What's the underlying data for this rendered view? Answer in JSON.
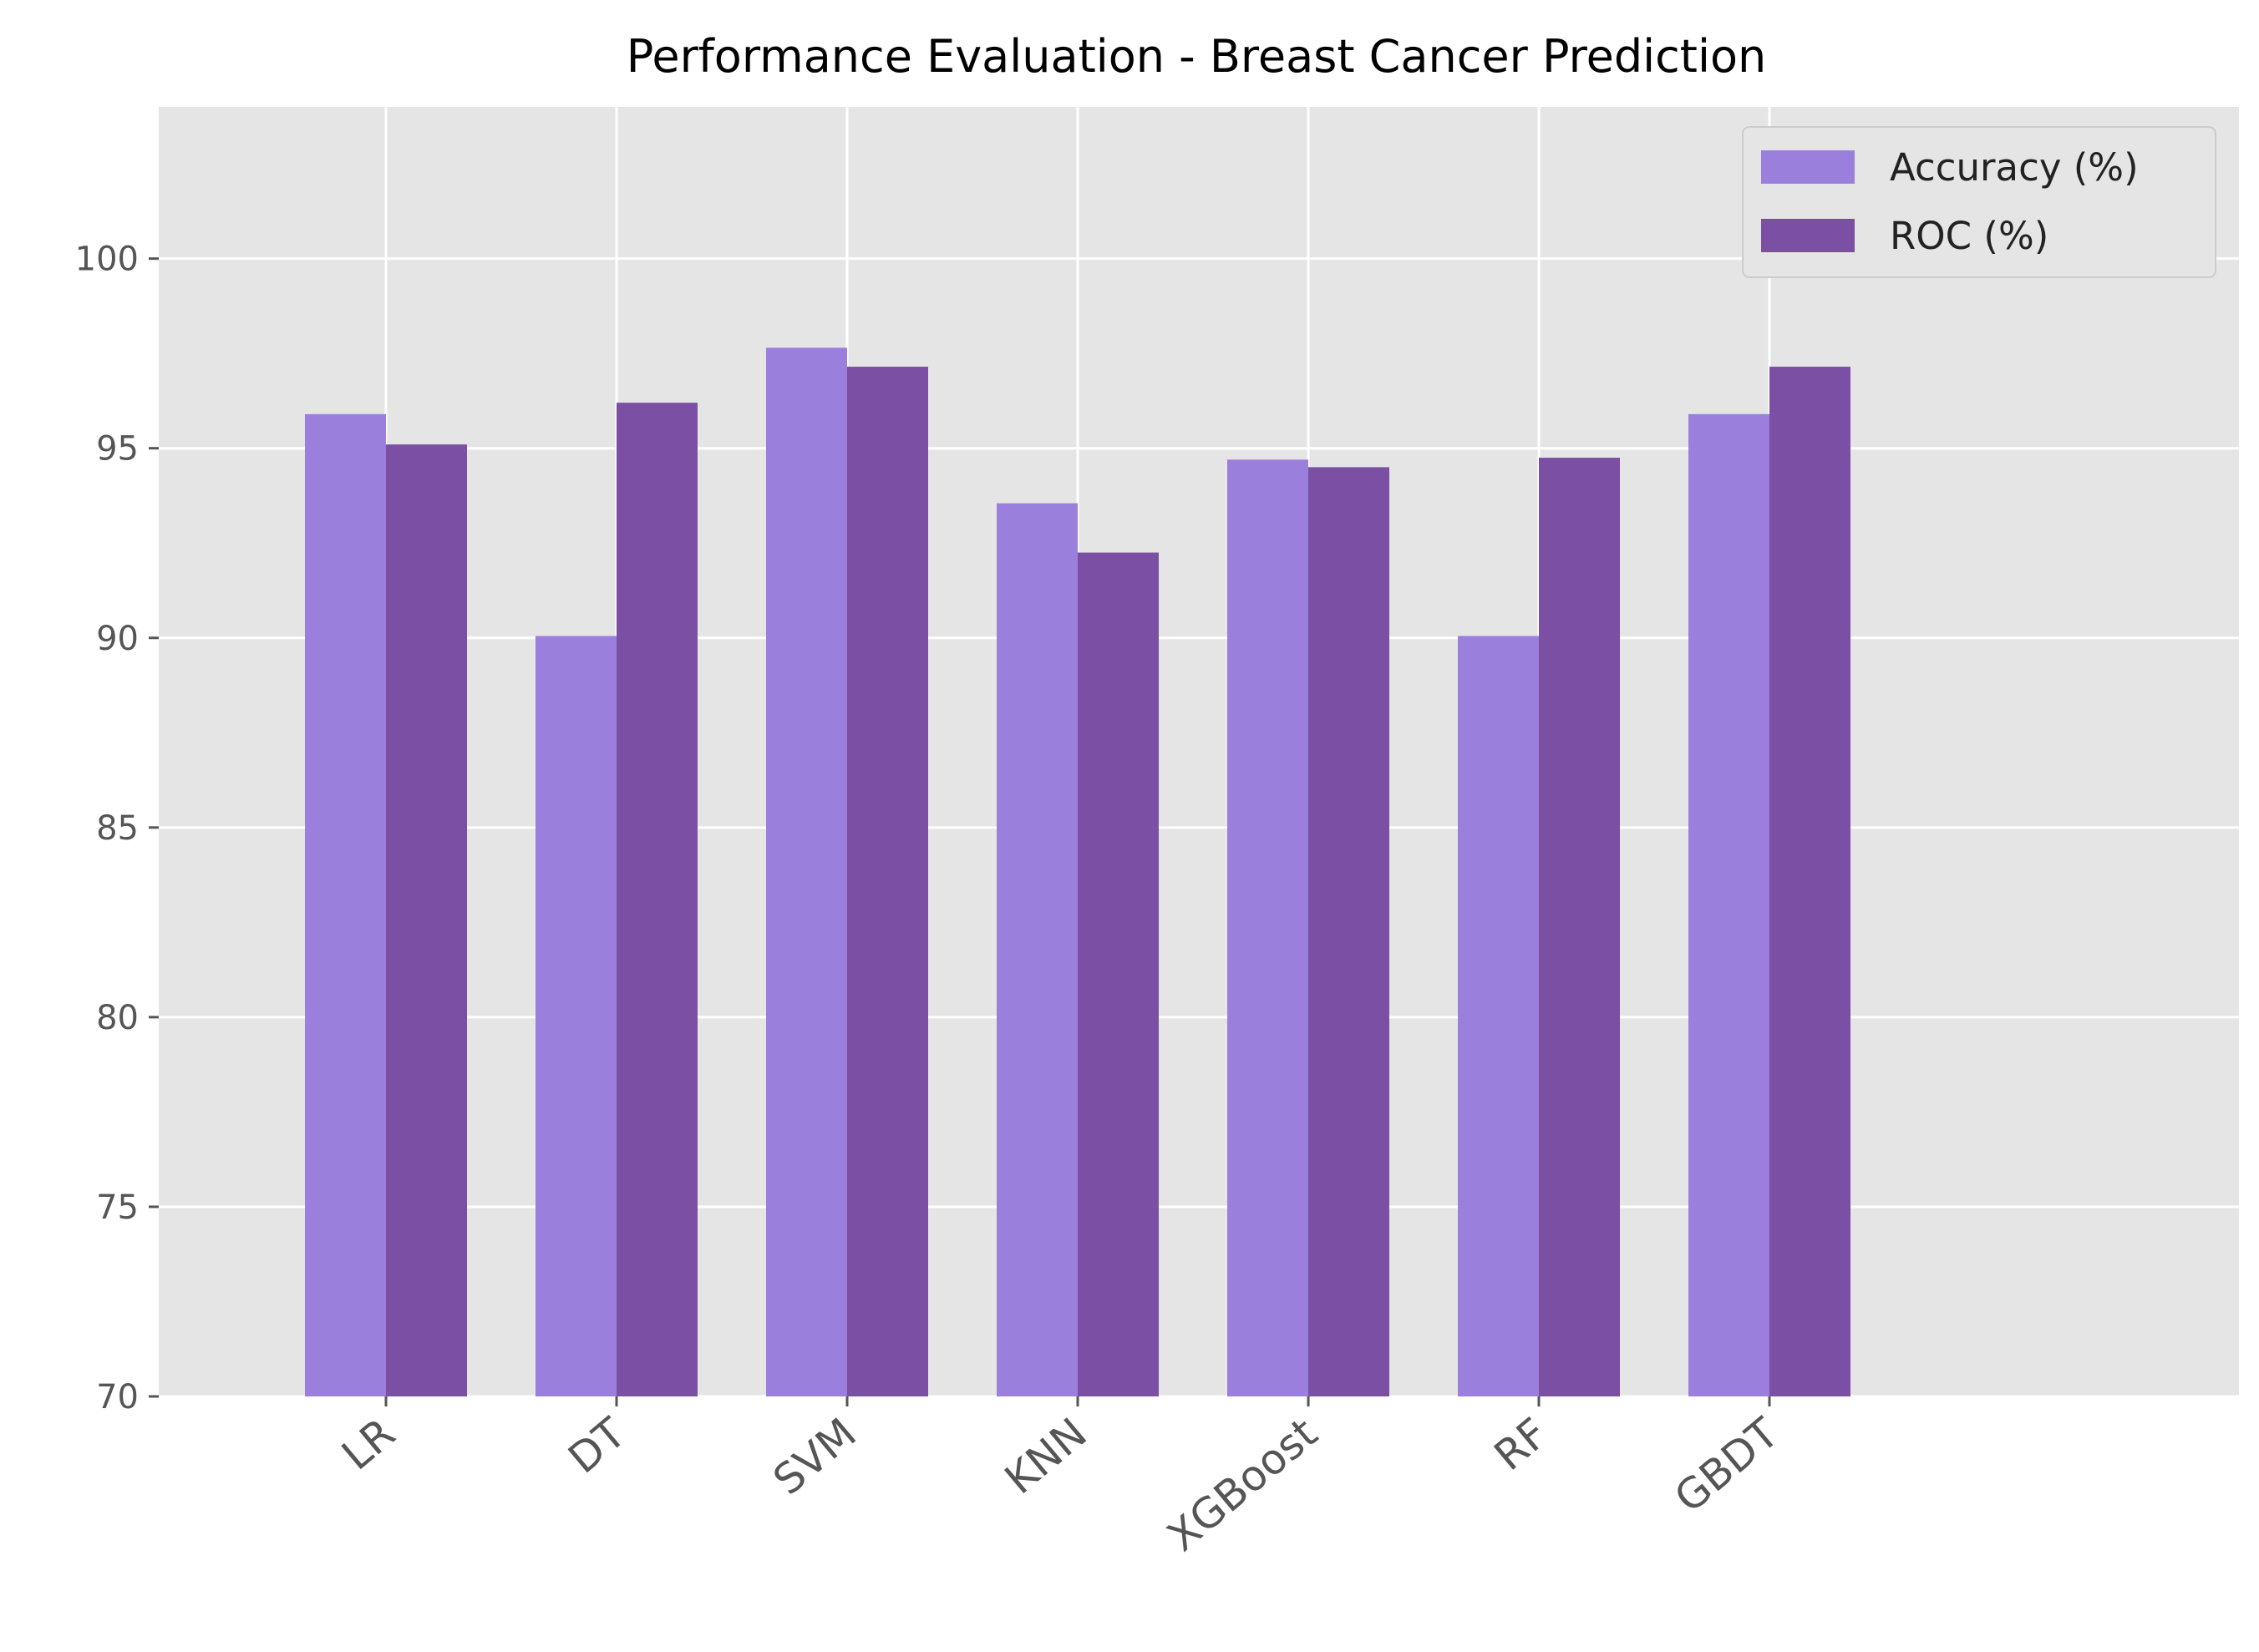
{
  "chart_data": {
    "type": "bar",
    "title": "Performance Evaluation - Breast Cancer Prediction",
    "xlabel": "",
    "ylabel": "",
    "categories": [
      "LR",
      "DT",
      "SVM",
      "KNN",
      "XGBoost",
      "RF",
      "GBDT"
    ],
    "series": [
      {
        "name": "Accuracy (%)",
        "color": "#9b7fdc",
        "values": [
          95.9,
          90.05,
          97.65,
          93.55,
          94.7,
          90.05,
          95.9
        ]
      },
      {
        "name": "ROC (%)",
        "color": "#7b4fa3",
        "values": [
          95.1,
          96.2,
          97.15,
          92.25,
          94.5,
          94.75,
          97.15
        ]
      }
    ],
    "ylim": [
      70,
      104
    ],
    "yticks": [
      70,
      75,
      80,
      85,
      90,
      95,
      100
    ],
    "grid": true,
    "legend_position": "top-right",
    "background_color": "#e5e5e5",
    "grid_color": "#ffffff"
  }
}
